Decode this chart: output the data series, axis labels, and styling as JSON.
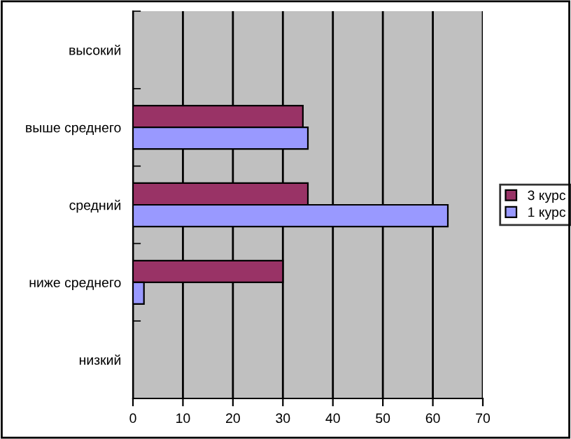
{
  "chart_data": {
    "type": "bar",
    "orientation": "horizontal",
    "categories": [
      "высокий",
      "выше среднего",
      "средний",
      "ниже среднего",
      "низкий"
    ],
    "series": [
      {
        "name": "3 курс",
        "color": "#993366",
        "values": [
          null,
          34,
          35,
          30,
          null
        ]
      },
      {
        "name": "1 курс",
        "color": "#9999ff",
        "values": [
          null,
          35,
          63,
          2.2,
          null
        ]
      }
    ],
    "xlim": [
      0,
      70
    ],
    "xticks": [
      0,
      10,
      20,
      30,
      40,
      50,
      60,
      70
    ],
    "grid": "x",
    "legend": "right"
  }
}
